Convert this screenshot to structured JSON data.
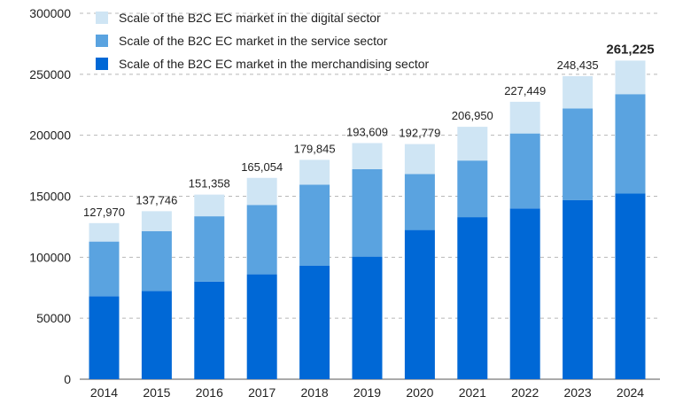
{
  "chart_data": {
    "type": "bar",
    "stacked": true,
    "title": "",
    "xlabel": "",
    "ylabel": "",
    "ylim": [
      0,
      300000
    ],
    "yticks": [
      0,
      50000,
      100000,
      150000,
      200000,
      250000,
      300000
    ],
    "ytick_labels": [
      "0",
      "50000",
      "100000",
      "150000",
      "200000",
      "250000",
      "300000"
    ],
    "grid": "horizontal dashed",
    "legend_position": "top-left",
    "categories": [
      "2014",
      "2015",
      "2016",
      "2017",
      "2018",
      "2019",
      "2020",
      "2021",
      "2022",
      "2023",
      "2024"
    ],
    "series": [
      {
        "name": "Scale of the B2C EC market in the merchandising sector",
        "color": "#0068d6",
        "values": [
          68043,
          72398,
          80043,
          86008,
          92992,
          100515,
          122333,
          132865,
          139997,
          146760,
          152194
        ]
      },
      {
        "name": "Scale of the B2C EC market in the service sector",
        "color": "#5aa3e0",
        "values": [
          44816,
          49014,
          53532,
          56875,
          66471,
          71672,
          45832,
          46424,
          61477,
          75169,
          81522
        ]
      },
      {
        "name": "Scale of the B2C EC market in the digital sector",
        "color": "#cfe5f4",
        "values": [
          15111,
          16334,
          17783,
          22171,
          20382,
          21422,
          24614,
          27661,
          25975,
          26506,
          27509
        ]
      }
    ],
    "totals": [
      127970,
      137746,
      151358,
      165054,
      179845,
      193609,
      192779,
      206950,
      227449,
      248435,
      261225
    ],
    "total_labels": [
      "127,970",
      "137,746",
      "151,358",
      "165,054",
      "179,845",
      "193,609",
      "192,779",
      "206,950",
      "227,449",
      "248,435",
      "261,225"
    ],
    "highlight_last_total": true
  }
}
